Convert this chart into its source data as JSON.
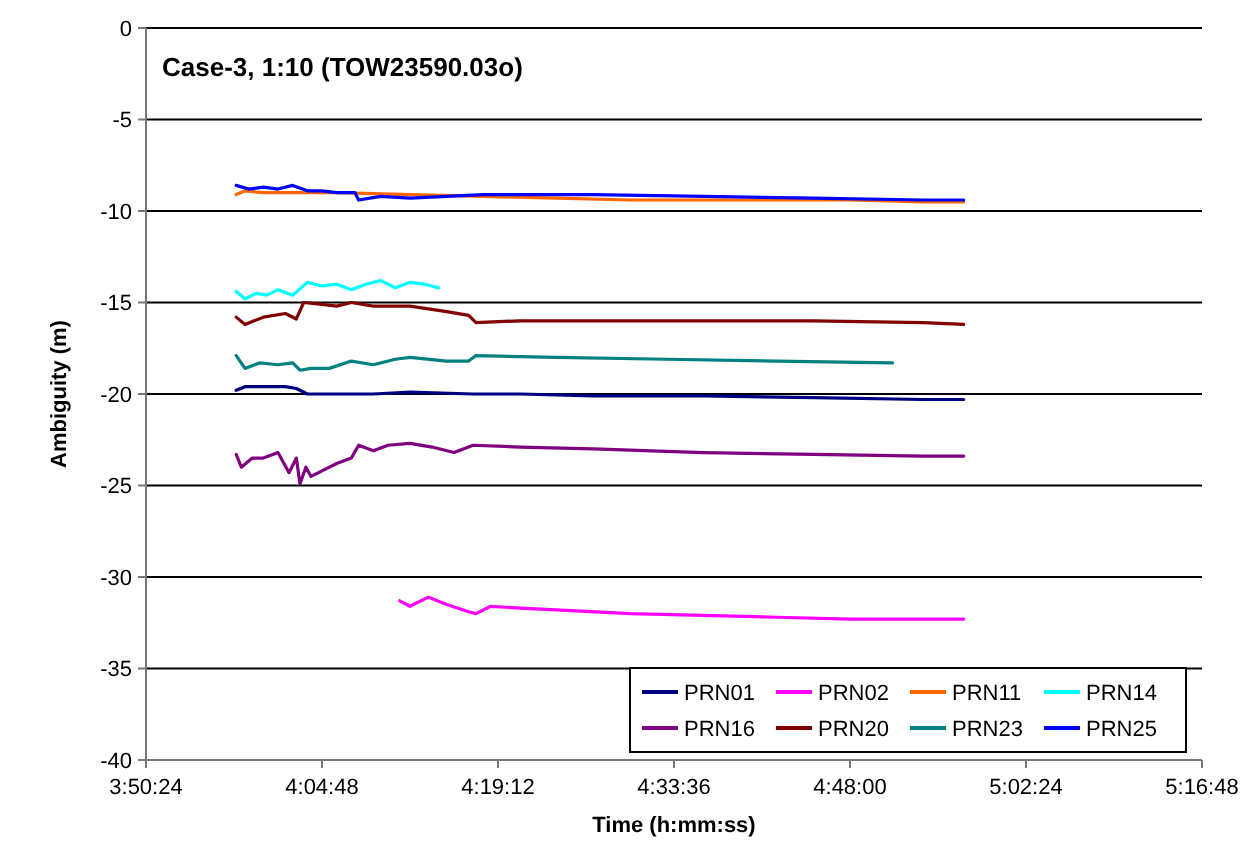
{
  "chart_data": {
    "type": "line",
    "title": "Case-3, 1:10 (TOW23590.03o)",
    "xlabel": "Time (h:mm:ss)",
    "ylabel": "Ambiguity (m)",
    "xlim": [
      3.84,
      5.28
    ],
    "xticks": [
      {
        "value": 3.84,
        "label": "3:50:24"
      },
      {
        "value": 4.08,
        "label": "4:04:48"
      },
      {
        "value": 4.32,
        "label": "4:19:12"
      },
      {
        "value": 4.56,
        "label": "4:33:36"
      },
      {
        "value": 4.8,
        "label": "4:48:00"
      },
      {
        "value": 5.04,
        "label": "5:02:24"
      },
      {
        "value": 5.28,
        "label": "5:16:48"
      }
    ],
    "ylim": [
      -40,
      0
    ],
    "yticks": [
      -40,
      -35,
      -30,
      -25,
      -20,
      -15,
      -10,
      -5,
      0
    ],
    "grid": "y",
    "legend": "bottom right",
    "marker": "none",
    "line_style": "solid",
    "series": [
      {
        "name": "PRN01",
        "color": "#000080",
        "x": [
          3.963,
          3.975,
          4.0,
          4.03,
          4.045,
          4.06,
          4.1,
          4.15,
          4.2,
          4.286,
          4.35,
          4.45,
          4.6,
          4.75,
          4.9,
          4.955
        ],
        "values": [
          -19.8,
          -19.6,
          -19.6,
          -19.6,
          -19.7,
          -20.0,
          -20.0,
          -20.0,
          -19.9,
          -20.0,
          -20.0,
          -20.1,
          -20.1,
          -20.2,
          -20.3,
          -20.3
        ]
      },
      {
        "name": "PRN02",
        "color": "#ff00ff",
        "x": [
          4.186,
          4.2,
          4.225,
          4.25,
          4.28,
          4.29,
          4.31,
          4.35,
          4.4,
          4.5,
          4.6,
          4.7,
          4.8,
          4.9,
          4.955
        ],
        "values": [
          -31.3,
          -31.6,
          -31.1,
          -31.5,
          -31.9,
          -32.0,
          -31.6,
          -31.7,
          -31.8,
          -32.0,
          -32.1,
          -32.2,
          -32.3,
          -32.3,
          -32.3
        ]
      },
      {
        "name": "PRN11",
        "color": "#ff6600",
        "x": [
          3.963,
          3.975,
          4.0,
          4.05,
          4.1,
          4.2,
          4.3,
          4.4,
          4.5,
          4.6,
          4.7,
          4.8,
          4.9,
          4.955
        ],
        "values": [
          -9.1,
          -8.9,
          -9.0,
          -9.0,
          -9.0,
          -9.1,
          -9.2,
          -9.3,
          -9.4,
          -9.4,
          -9.4,
          -9.4,
          -9.5,
          -9.5
        ]
      },
      {
        "name": "PRN14",
        "color": "#00ffff",
        "x": [
          3.963,
          3.975,
          3.99,
          4.005,
          4.02,
          4.04,
          4.06,
          4.08,
          4.1,
          4.12,
          4.14,
          4.16,
          4.18,
          4.2,
          4.22,
          4.239
        ],
        "values": [
          -14.4,
          -14.8,
          -14.5,
          -14.6,
          -14.3,
          -14.6,
          -13.9,
          -14.1,
          -14.0,
          -14.3,
          -14.0,
          -13.8,
          -14.2,
          -13.9,
          -14.0,
          -14.2
        ]
      },
      {
        "name": "PRN16",
        "color": "#800080",
        "x": [
          3.963,
          3.97,
          3.985,
          4.0,
          4.02,
          4.035,
          4.045,
          4.05,
          4.058,
          4.065,
          4.08,
          4.1,
          4.12,
          4.13,
          4.15,
          4.17,
          4.2,
          4.23,
          4.26,
          4.286,
          4.35,
          4.45,
          4.6,
          4.75,
          4.9,
          4.955
        ],
        "values": [
          -23.3,
          -24.0,
          -23.5,
          -23.5,
          -23.2,
          -24.3,
          -23.5,
          -24.9,
          -24.0,
          -24.5,
          -24.2,
          -23.8,
          -23.5,
          -22.8,
          -23.1,
          -22.8,
          -22.7,
          -22.9,
          -23.2,
          -22.8,
          -22.9,
          -23.0,
          -23.2,
          -23.3,
          -23.4,
          -23.4
        ]
      },
      {
        "name": "PRN20",
        "color": "#800000",
        "x": [
          3.963,
          3.975,
          4.0,
          4.03,
          4.045,
          4.055,
          4.08,
          4.1,
          4.12,
          4.15,
          4.2,
          4.25,
          4.28,
          4.29,
          4.35,
          4.45,
          4.6,
          4.75,
          4.9,
          4.955
        ],
        "values": [
          -15.8,
          -16.2,
          -15.8,
          -15.6,
          -15.9,
          -15.0,
          -15.1,
          -15.2,
          -15.0,
          -15.2,
          -15.2,
          -15.5,
          -15.7,
          -16.1,
          -16.0,
          -16.0,
          -16.0,
          -16.0,
          -16.1,
          -16.2
        ]
      },
      {
        "name": "PRN23",
        "color": "#008080",
        "x": [
          3.963,
          3.975,
          3.995,
          4.02,
          4.04,
          4.05,
          4.065,
          4.09,
          4.12,
          4.15,
          4.18,
          4.2,
          4.25,
          4.28,
          4.29,
          4.4,
          4.55,
          4.7,
          4.858
        ],
        "values": [
          -17.9,
          -18.6,
          -18.3,
          -18.4,
          -18.3,
          -18.7,
          -18.6,
          -18.6,
          -18.2,
          -18.4,
          -18.1,
          -18.0,
          -18.2,
          -18.2,
          -17.9,
          -18.0,
          -18.1,
          -18.2,
          -18.3
        ]
      },
      {
        "name": "PRN25",
        "color": "#0000ff",
        "x": [
          3.963,
          3.98,
          4.0,
          4.02,
          4.04,
          4.06,
          4.08,
          4.1,
          4.125,
          4.13,
          4.16,
          4.2,
          4.25,
          4.3,
          4.35,
          4.45,
          4.6,
          4.75,
          4.9,
          4.955
        ],
        "values": [
          -8.6,
          -8.8,
          -8.7,
          -8.8,
          -8.6,
          -8.9,
          -8.9,
          -9.0,
          -9.0,
          -9.4,
          -9.2,
          -9.3,
          -9.2,
          -9.1,
          -9.1,
          -9.1,
          -9.2,
          -9.3,
          -9.4,
          -9.4
        ]
      }
    ]
  }
}
